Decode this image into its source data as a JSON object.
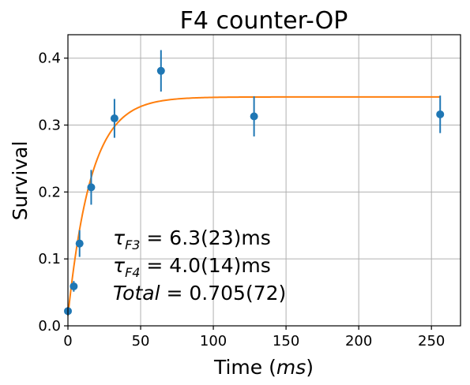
{
  "chart_data": {
    "type": "scatter",
    "title": "F4 counter-OP",
    "xlabel": "Time (ms)",
    "ylabel": "Survival",
    "xlim": [
      0,
      270
    ],
    "ylim": [
      0,
      0.435
    ],
    "xticks": [
      0,
      50,
      100,
      150,
      200,
      250
    ],
    "yticks": [
      0.0,
      0.1,
      0.2,
      0.3,
      0.4
    ],
    "xtick_labels": [
      "0",
      "50",
      "100",
      "150",
      "200",
      "250"
    ],
    "ytick_labels": [
      "0.0",
      "0.1",
      "0.2",
      "0.3",
      "0.4"
    ],
    "grid": true,
    "colors": {
      "data": "#1f77b4",
      "fit": "#ff7f0e"
    },
    "series": [
      {
        "kind": "errorbar",
        "x": [
          0,
          4,
          8,
          16,
          32,
          64,
          128,
          256
        ],
        "y": [
          0.022,
          0.059,
          0.123,
          0.207,
          0.31,
          0.381,
          0.313,
          0.316
        ],
        "yerr": [
          0.006,
          0.008,
          0.02,
          0.026,
          0.029,
          0.031,
          0.03,
          0.028
        ]
      },
      {
        "kind": "fit-line",
        "model": {
          "offset": 0.015,
          "amplitude": 0.327,
          "tau_ms": 16
        }
      }
    ],
    "annotations": [
      {
        "lines": [
          "τ_F3 = 6.3(23)ms",
          "τ_F4 = 4.0(14)ms",
          "Total = 0.705(72)"
        ]
      }
    ]
  }
}
